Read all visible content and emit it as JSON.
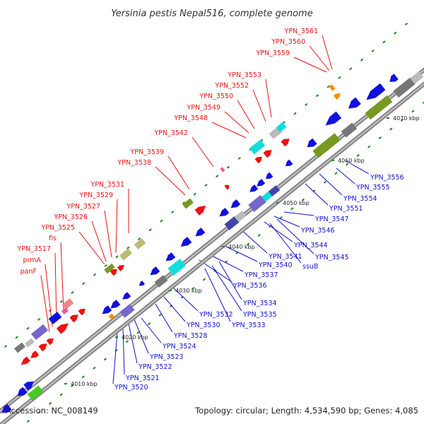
{
  "title": "Yersinia pestis Nepal516, complete genome",
  "footer": {
    "accession": "Accession: NC_008149",
    "summary": "Topology: circular; Length: 4,534,590 bp; Genes: 4,085"
  },
  "colors": {
    "upper_labels": "#ee1111",
    "lower_labels": "#1111cc",
    "backbone": "#999999"
  },
  "ticks": [
    "4010 kbp",
    "4020 kbp",
    "4030 kbp",
    "4040 kbp",
    "4050 kbp",
    "4060 kbp",
    "4070 kbp"
  ],
  "upper_labels": [
    "panF",
    "prmA",
    "YPN_3517",
    "fis",
    "YPN_3525",
    "YPN_3526",
    "YPN_3527",
    "YPN_3529",
    "YPN_3531",
    "YPN_3538",
    "YPN_3539",
    "YPN_3542",
    "YPN_3548",
    "YPN_3549",
    "YPN_3550",
    "YPN_3552",
    "YPN_3553",
    "YPN_3559",
    "YPN_3560",
    "YPN_3561"
  ],
  "lower_labels": [
    "YPN_3520",
    "YPN_3521",
    "YPN_3522",
    "YPN_3523",
    "YPN_3524",
    "YPN_3528",
    "YPN_3530",
    "YPN_3532",
    "YPN_3533",
    "YPN_3535",
    "YPN_3534",
    "YPN_3536",
    "YPN_3537",
    "YPN_3540",
    "ssuB",
    "YPN_3541",
    "YPN_3545",
    "YPN_3544",
    "YPN_3546",
    "YPN_3547",
    "YPN_3551",
    "YPN_3554",
    "YPN_3555",
    "YPN_3556"
  ]
}
